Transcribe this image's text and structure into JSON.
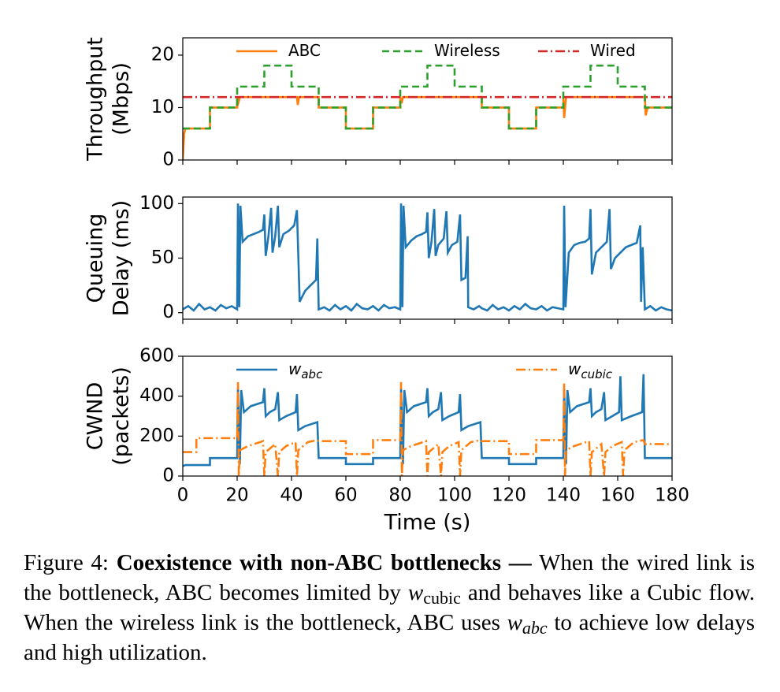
{
  "chart_data": [
    {
      "type": "line",
      "ylabel": [
        "Throughput",
        "(Mbps)"
      ],
      "xlim": [
        0,
        180
      ],
      "ylim": [
        0,
        23.3
      ],
      "yticks": [
        0,
        10,
        20
      ],
      "legend": "top",
      "series": [
        {
          "name": "ABC",
          "color": "#ff7f0e",
          "style": "solid",
          "x": [
            0,
            0.5,
            1,
            10,
            10,
            20,
            20,
            20.5,
            21,
            42,
            42.3,
            42.8,
            50,
            50,
            60,
            60,
            70,
            70,
            80,
            80,
            80.5,
            81,
            110,
            110,
            120,
            120,
            130,
            130,
            140,
            140,
            140.3,
            141,
            170,
            170.3,
            171,
            180
          ],
          "values": [
            0,
            5,
            6,
            6,
            10,
            10,
            12,
            11,
            12,
            12,
            10.5,
            12,
            12,
            10,
            10,
            6,
            6,
            10,
            10,
            12,
            10.8,
            12,
            12,
            10,
            10,
            6,
            6,
            10,
            10,
            12,
            8,
            12,
            12,
            8.5,
            10,
            10
          ]
        },
        {
          "name": "Wireless",
          "color": "#2ca02c",
          "style": "dashed",
          "x": [
            0,
            10,
            10,
            20,
            20,
            30,
            30,
            40,
            40,
            50,
            50,
            60,
            60,
            70,
            70,
            80,
            80,
            90,
            90,
            100,
            100,
            110,
            110,
            120,
            120,
            130,
            130,
            140,
            140,
            150,
            150,
            160,
            160,
            170,
            170,
            180
          ],
          "values": [
            6,
            6,
            10,
            10,
            14,
            14,
            18,
            18,
            14,
            14,
            10,
            10,
            6,
            6,
            10,
            10,
            14,
            14,
            18,
            18,
            14,
            14,
            10,
            10,
            6,
            6,
            10,
            10,
            14,
            14,
            18,
            18,
            14,
            14,
            10,
            10
          ]
        },
        {
          "name": "Wired",
          "color": "#d62728",
          "style": "dashdot",
          "x": [
            0,
            180
          ],
          "values": [
            12,
            12
          ]
        }
      ]
    },
    {
      "type": "line",
      "ylabel": [
        "Queuing",
        "Delay (ms)"
      ],
      "xlim": [
        0,
        180
      ],
      "ylim": [
        -6,
        106
      ],
      "yticks": [
        0,
        50,
        100
      ],
      "series": [
        {
          "color": "#1f77b4",
          "style": "solid",
          "x": [
            0,
            2,
            4,
            6,
            8,
            10,
            12,
            14,
            16,
            18,
            20,
            20.3,
            20.8,
            21.2,
            22,
            24,
            26,
            28,
            29.5,
            30,
            30.5,
            31.5,
            32.5,
            33,
            34,
            35,
            35.5,
            37,
            39,
            41,
            42,
            43,
            45,
            47,
            49,
            49.5,
            50,
            52,
            54,
            56,
            58,
            60,
            62,
            64,
            66,
            68,
            70,
            72,
            74,
            76,
            78,
            80,
            80.3,
            80.8,
            81.2,
            82,
            84,
            86,
            88,
            89.5,
            90,
            90.5,
            91.5,
            92.5,
            93,
            94,
            96,
            97,
            97.5,
            99,
            101,
            102,
            102.5,
            104,
            104.8,
            105,
            107,
            109,
            110,
            112,
            114,
            116,
            118,
            120,
            122,
            124,
            126,
            128,
            130,
            132,
            134,
            136,
            138,
            140,
            140.3,
            140.8,
            142,
            144,
            146,
            148,
            149.5,
            150,
            150.5,
            152,
            154,
            156,
            157,
            157.5,
            159,
            161,
            163,
            165,
            167,
            168.3,
            168.6,
            169.2,
            170,
            172,
            174,
            176,
            178,
            180
          ],
          "values": [
            3,
            6,
            2,
            8,
            3,
            5,
            2,
            7,
            4,
            6,
            3,
            100,
            5,
            98,
            65,
            70,
            72,
            74,
            76,
            90,
            52,
            70,
            96,
            55,
            70,
            98,
            60,
            72,
            75,
            80,
            94,
            10,
            20,
            25,
            30,
            68,
            3,
            5,
            2,
            7,
            3,
            6,
            2,
            8,
            4,
            3,
            6,
            2,
            7,
            4,
            5,
            3,
            100,
            5,
            98,
            60,
            66,
            70,
            72,
            74,
            92,
            50,
            65,
            95,
            52,
            62,
            68,
            93,
            55,
            62,
            65,
            90,
            30,
            32,
            70,
            5,
            3,
            6,
            4,
            2,
            7,
            3,
            5,
            2,
            6,
            3,
            8,
            4,
            3,
            6,
            2,
            5,
            4,
            3,
            98,
            5,
            55,
            62,
            64,
            65,
            68,
            95,
            35,
            55,
            60,
            65,
            95,
            40,
            50,
            55,
            60,
            62,
            64,
            80,
            10,
            60,
            3,
            6,
            2,
            5,
            3,
            2
          ]
        }
      ]
    },
    {
      "type": "line",
      "ylabel": [
        "CWND",
        "(packets)"
      ],
      "xlabel": "Time (s)",
      "xlim": [
        0,
        180
      ],
      "xticks": [
        0,
        20,
        40,
        60,
        80,
        100,
        120,
        140,
        160,
        180
      ],
      "ylim": [
        0,
        600
      ],
      "yticks": [
        0,
        200,
        400,
        600
      ],
      "series": [
        {
          "name": "w",
          "subscript": "abc",
          "color": "#1f77b4",
          "style": "solid",
          "x": [
            0,
            1,
            10,
            10,
            20,
            20.3,
            21,
            21.5,
            22.5,
            25,
            29.5,
            30,
            30.5,
            32,
            34,
            35,
            35.5,
            38,
            41.5,
            42,
            42.5,
            45,
            49.5,
            50,
            60,
            60,
            70,
            70,
            80,
            80.3,
            81,
            81.5,
            82.5,
            85,
            89.5,
            90,
            90.5,
            92,
            94,
            95,
            95.5,
            98,
            101.5,
            102,
            102.5,
            105,
            109.5,
            110,
            120,
            120,
            130,
            130,
            140,
            140.3,
            141,
            141.5,
            142.5,
            145,
            149.5,
            150,
            150.5,
            152,
            154,
            155,
            155.5,
            158,
            160.5,
            161,
            161.5,
            165,
            169,
            169.5,
            170,
            180
          ],
          "values": [
            50,
            55,
            55,
            90,
            90,
            440,
            60,
            430,
            320,
            350,
            370,
            440,
            300,
            320,
            335,
            420,
            280,
            300,
            320,
            410,
            230,
            250,
            270,
            90,
            90,
            60,
            60,
            90,
            90,
            440,
            60,
            430,
            320,
            350,
            370,
            440,
            300,
            320,
            335,
            420,
            280,
            300,
            320,
            410,
            230,
            250,
            270,
            90,
            90,
            60,
            60,
            90,
            90,
            440,
            60,
            430,
            320,
            350,
            370,
            440,
            300,
            320,
            335,
            420,
            280,
            300,
            320,
            500,
            280,
            300,
            320,
            510,
            90,
            90
          ]
        },
        {
          "name": "w",
          "subscript": "cubic",
          "color": "#ff7f0e",
          "style": "dashdot",
          "x": [
            0,
            5,
            5,
            20,
            20.3,
            20.6,
            21,
            24,
            29.5,
            30,
            30.5,
            34,
            35,
            35.5,
            38,
            41.5,
            42,
            42.5,
            46,
            49.5,
            50,
            60,
            60,
            70,
            70,
            80,
            80.3,
            80.6,
            81,
            84,
            89.5,
            90,
            90.5,
            94,
            95,
            95.5,
            98,
            101.5,
            102,
            102.5,
            106,
            109.5,
            110,
            120,
            120,
            130,
            130,
            140,
            140.3,
            140.6,
            141,
            144,
            149.5,
            150,
            150.5,
            154,
            155,
            155.5,
            158,
            161.5,
            162,
            162.5,
            166,
            169.5,
            170,
            180
          ],
          "values": [
            120,
            120,
            190,
            190,
            470,
            0,
            130,
            150,
            175,
            0,
            120,
            160,
            0,
            120,
            150,
            170,
            0,
            130,
            170,
            180,
            175,
            175,
            110,
            110,
            180,
            180,
            470,
            0,
            130,
            150,
            175,
            0,
            120,
            160,
            0,
            120,
            150,
            170,
            0,
            130,
            170,
            180,
            175,
            175,
            110,
            110,
            180,
            180,
            470,
            0,
            130,
            150,
            175,
            0,
            120,
            160,
            0,
            120,
            150,
            170,
            0,
            130,
            170,
            180,
            160,
            160
          ]
        }
      ]
    }
  ],
  "caption": {
    "label": "Figure 4:",
    "heading": "Coexistence with non-ABC bottlenecks —",
    "text1": "When the wired link is the bottleneck, ABC becomes limited by",
    "var1": "w",
    "sub1": "cubic",
    "text2": "and behaves like a Cubic flow. When the wireless link is the bottleneck, ABC uses",
    "var2": "w",
    "sub2": "abc",
    "text3": "to achieve low delays and high utilization."
  }
}
